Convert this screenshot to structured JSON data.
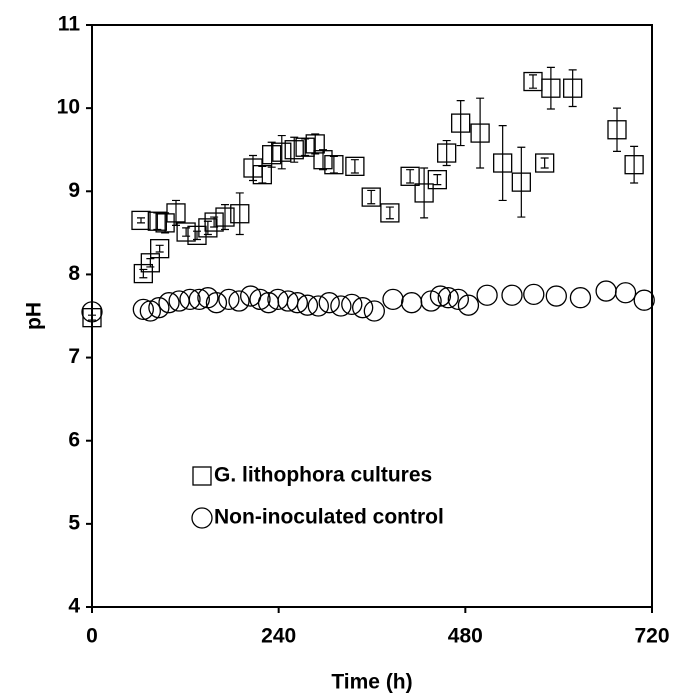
{
  "chart_data": {
    "type": "scatter",
    "x_label": "Time (h)",
    "y_label": "pH",
    "xlim": [
      0,
      720
    ],
    "xticks": [
      0,
      240,
      480,
      720
    ],
    "ylim": [
      4,
      11
    ],
    "yticks": [
      4,
      5,
      6,
      7,
      8,
      9,
      10,
      11
    ],
    "legend": "bottom-left",
    "series": [
      {
        "name": "G. lithophora cultures",
        "marker": "square",
        "color": "#000000",
        "x": [
          0,
          66,
          75,
          87,
          63,
          84,
          94,
          108,
          121,
          135,
          149,
          157,
          171,
          190,
          207,
          219,
          231,
          244,
          260,
          274,
          287,
          297,
          311,
          338,
          359,
          383,
          409,
          427,
          444,
          456,
          474,
          499,
          528,
          552,
          582,
          567,
          590,
          618,
          675,
          697
        ],
        "values": [
          7.48,
          8.01,
          8.14,
          8.31,
          8.65,
          8.64,
          8.62,
          8.74,
          8.51,
          8.47,
          8.56,
          8.63,
          8.69,
          8.73,
          9.28,
          9.2,
          9.44,
          9.47,
          9.5,
          9.53,
          9.57,
          9.38,
          9.32,
          9.3,
          8.93,
          8.74,
          9.18,
          8.98,
          9.14,
          9.46,
          9.82,
          9.7,
          9.34,
          9.11,
          9.34,
          10.32,
          10.24,
          10.24,
          9.74,
          9.32
        ],
        "errors": [
          0.03,
          0.05,
          0.05,
          0.04,
          0.03,
          0.1,
          0.12,
          0.15,
          0.05,
          0.05,
          0.08,
          0.06,
          0.15,
          0.25,
          0.15,
          0.1,
          0.15,
          0.2,
          0.15,
          0.1,
          0.12,
          0.12,
          0.1,
          0.08,
          0.08,
          0.07,
          0.08,
          0.3,
          0.06,
          0.15,
          0.27,
          0.42,
          0.45,
          0.42,
          0.06,
          0.08,
          0.25,
          0.22,
          0.26,
          0.22
        ]
      },
      {
        "name": "Non-inoculated control",
        "marker": "circle",
        "color": "#000000",
        "x": [
          0,
          66,
          75,
          86,
          99,
          112,
          126,
          138,
          149,
          160,
          176,
          189,
          204,
          216,
          227,
          239,
          252,
          264,
          277,
          291,
          305,
          320,
          334,
          348,
          363,
          387,
          411,
          436,
          448,
          458,
          471,
          484,
          508,
          540,
          568,
          597,
          628,
          661,
          686,
          710
        ],
        "values": [
          7.55,
          7.58,
          7.56,
          7.6,
          7.66,
          7.68,
          7.7,
          7.7,
          7.72,
          7.66,
          7.7,
          7.68,
          7.74,
          7.7,
          7.66,
          7.7,
          7.68,
          7.66,
          7.63,
          7.62,
          7.66,
          7.62,
          7.64,
          7.6,
          7.56,
          7.7,
          7.66,
          7.68,
          7.74,
          7.72,
          7.7,
          7.63,
          7.75,
          7.75,
          7.76,
          7.74,
          7.72,
          7.8,
          7.78,
          7.69
        ]
      }
    ]
  }
}
